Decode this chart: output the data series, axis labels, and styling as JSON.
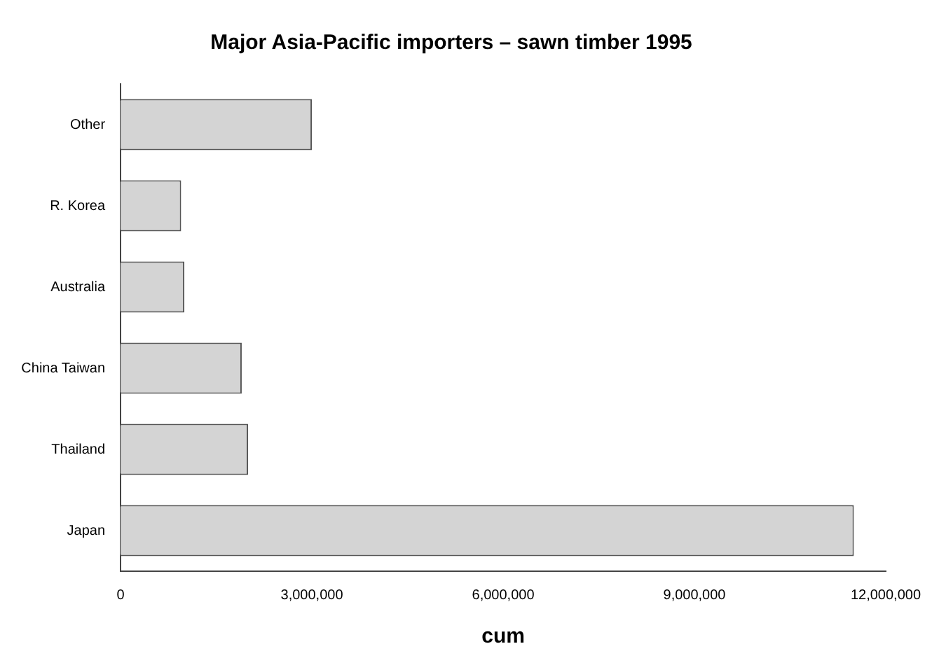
{
  "chart_data": {
    "type": "bar",
    "orientation": "horizontal",
    "title": "Major Asia-Pacific importers – sawn timber 1995",
    "xlabel": "cum",
    "categories": [
      "Other",
      "R. Korea",
      "Australia",
      "China Taiwan",
      "Thailand",
      "Japan"
    ],
    "values": [
      3000000,
      950000,
      1000000,
      1900000,
      2000000,
      11500000
    ],
    "color": "#d4d4d4",
    "xlim": [
      0,
      12000000
    ],
    "xticks": [
      {
        "value": 0,
        "label": "0"
      },
      {
        "value": 3000000,
        "label": "3,000,000"
      },
      {
        "value": 6000000,
        "label": "6,000,000"
      },
      {
        "value": 9000000,
        "label": "9,000,000"
      },
      {
        "value": 12000000,
        "label": "12,000,000"
      }
    ],
    "grid": false,
    "legend": false
  }
}
